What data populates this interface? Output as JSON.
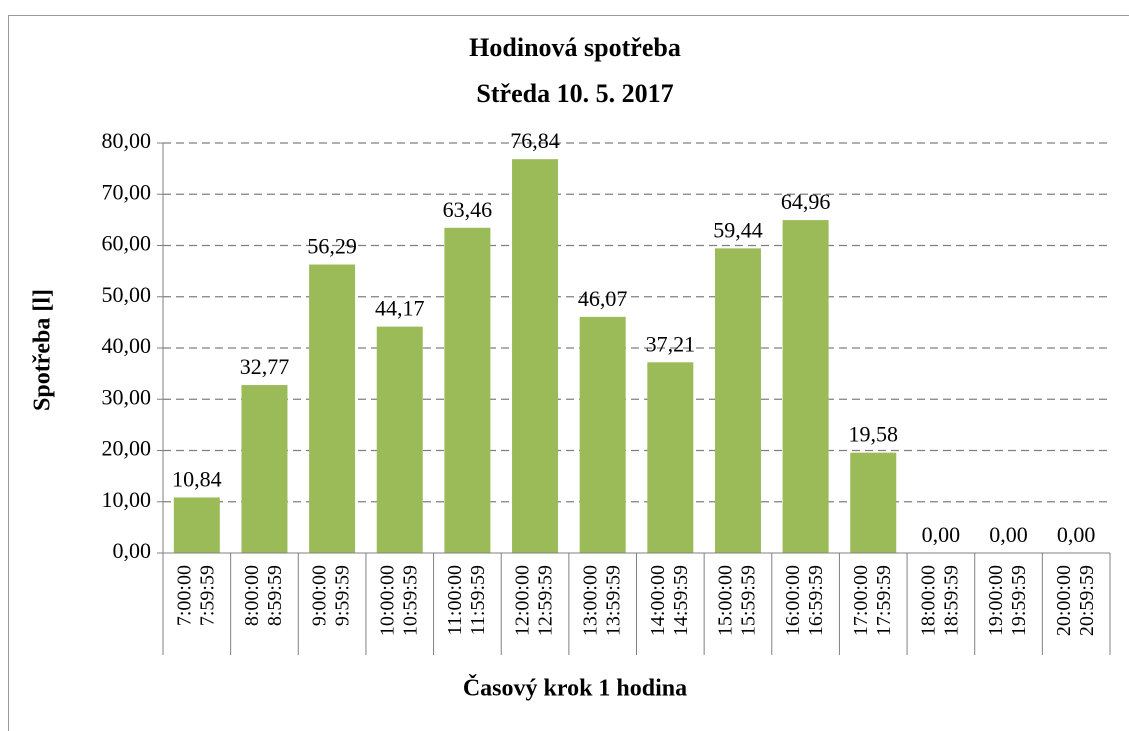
{
  "chart_data": {
    "type": "bar",
    "title": "Hodinová spotřeba",
    "subtitle": "Středa 10. 5. 2017",
    "y_label": "Spotřeba [l]",
    "x_label": "Časový krok 1 hodina",
    "categories": [
      [
        "7:00:00",
        "7:59:59"
      ],
      [
        "8:00:00",
        "8:59:59"
      ],
      [
        "9:00:00",
        "9:59:59"
      ],
      [
        "10:00:00",
        "10:59:59"
      ],
      [
        "11:00:00",
        "11:59:59"
      ],
      [
        "12:00:00",
        "12:59:59"
      ],
      [
        "13:00:00",
        "13:59:59"
      ],
      [
        "14:00:00",
        "14:59:59"
      ],
      [
        "15:00:00",
        "15:59:59"
      ],
      [
        "16:00:00",
        "16:59:59"
      ],
      [
        "17:00:00",
        "17:59:59"
      ],
      [
        "18:00:00",
        "18:59:59"
      ],
      [
        "19:00:00",
        "19:59:59"
      ],
      [
        "20:00:00",
        "20:59:59"
      ]
    ],
    "values": [
      10.84,
      32.77,
      56.29,
      44.17,
      63.46,
      76.84,
      46.07,
      37.21,
      59.44,
      64.96,
      19.58,
      0,
      0,
      0
    ],
    "value_labels": [
      "10,84",
      "32,77",
      "56,29",
      "44,17",
      "63,46",
      "76,84",
      "46,07",
      "37,21",
      "59,44",
      "64,96",
      "19,58",
      "0,00",
      "0,00",
      "0,00"
    ],
    "color": "#9bbb59",
    "ylim": [
      0,
      80
    ],
    "yticks": [
      {
        "value": 0,
        "label": "0,00"
      },
      {
        "value": 10,
        "label": "10,00"
      },
      {
        "value": 20,
        "label": "20,00"
      },
      {
        "value": 30,
        "label": "30,00"
      },
      {
        "value": 40,
        "label": "40,00"
      },
      {
        "value": 50,
        "label": "50,00"
      },
      {
        "value": 60,
        "label": "60,00"
      },
      {
        "value": 70,
        "label": "70,00"
      },
      {
        "value": 80,
        "label": "80,00"
      }
    ],
    "grid": true
  }
}
